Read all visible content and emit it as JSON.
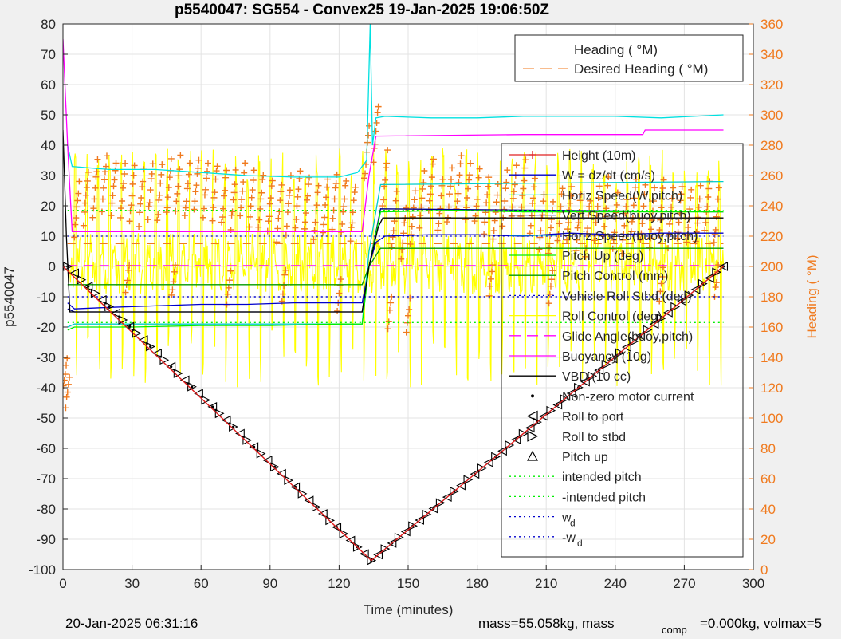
{
  "chart_data": {
    "type": "line",
    "title": "p5540047: SG554 - Convex25 19-Jan-2025 19:06:50Z",
    "xlabel": "Time (minutes)",
    "ylabel": "p5540047",
    "y2label": "Heading (  °M)",
    "xlim": [
      0,
      300
    ],
    "ylim": [
      -100,
      80
    ],
    "y2lim": [
      0,
      360
    ],
    "x_ticks": [
      "0",
      "30",
      "60",
      "90",
      "120",
      "150",
      "180",
      "210",
      "240",
      "270",
      "300"
    ],
    "y_ticks": [
      "80",
      "70",
      "60",
      "50",
      "40",
      "30",
      "20",
      "10",
      "0",
      "-10",
      "-20",
      "-30",
      "-40",
      "-50",
      "-60",
      "-70",
      "-80",
      "-90",
      "-100"
    ],
    "y2_ticks": [
      "360",
      "340",
      "320",
      "300",
      "280",
      "260",
      "240",
      "220",
      "200",
      "180",
      "160",
      "140",
      "120",
      "100",
      "80",
      "60",
      "40",
      "20",
      "0"
    ],
    "grid": true,
    "legend_heading": {
      "placement": "top-right",
      "entries": [
        "Heading (  °M)",
        "Desired Heading (  °M)"
      ]
    },
    "legend_main": {
      "placement": "right",
      "entries": [
        {
          "label": "Height (10m)",
          "color": "#e02020",
          "style": "line-plus"
        },
        {
          "label": "W = dz/dt (cm/s)",
          "color": "#0000cc",
          "style": "line"
        },
        {
          "label": "Horiz Speed(W,pitch)",
          "color": "#00e0e0",
          "style": "line"
        },
        {
          "label": "Vert Speed(buoy,pitch)",
          "color": "#00008b",
          "style": "line"
        },
        {
          "label": "Horiz Speed(buoy,pitch)",
          "color": "#00cccc",
          "style": "line"
        },
        {
          "label": "Pitch Up (deg)",
          "color": "#00ee00",
          "style": "line"
        },
        {
          "label": "Pitch Control (mm)",
          "color": "#009900",
          "style": "line"
        },
        {
          "label": "Vehicle Roll Stbd (deg)",
          "color": "#0000cc",
          "style": "dotted"
        },
        {
          "label": "Roll Control (deg)",
          "color": "#ffff00",
          "style": "line"
        },
        {
          "label": "Glide Angle(buoy,pitch)",
          "color": "#ff00ff",
          "style": "dashed"
        },
        {
          "label": "Buoyancy (10g)",
          "color": "#ff00ff",
          "style": "line"
        },
        {
          "label": "VBD (10 cc)",
          "color": "#000000",
          "style": "line"
        },
        {
          "label": "Non-zero motor current",
          "color": "#000000",
          "style": "dot"
        },
        {
          "label": "Roll to port",
          "color": "#000000",
          "style": "tri-left"
        },
        {
          "label": "Roll to stbd",
          "color": "#000000",
          "style": "tri-right"
        },
        {
          "label": "Pitch up",
          "color": "#000000",
          "style": "tri-up"
        },
        {
          "label": "intended pitch",
          "color": "#00ee00",
          "style": "dotted"
        },
        {
          "label": "-intended pitch",
          "color": "#00ee00",
          "style": "dotted"
        },
        {
          "label": "w",
          "sub": "d",
          "color": "#0000cc",
          "style": "dotted"
        },
        {
          "label": "-w",
          "sub": "d",
          "color": "#0000cc",
          "style": "dotted"
        }
      ]
    },
    "series": [
      {
        "name": "Height (10m)",
        "color": "#e02020",
        "x": [
          0,
          134,
          287
        ],
        "y": [
          0,
          -97,
          0
        ]
      },
      {
        "name": "W = dz/dt (cm/s)",
        "color": "#0000cc",
        "x": [
          2,
          5,
          20,
          40,
          60,
          80,
          100,
          120,
          130,
          133,
          136,
          140,
          160,
          180,
          200,
          220,
          240,
          260,
          287
        ],
        "y": [
          -12,
          -14,
          -13.5,
          -13,
          -12.5,
          -12.5,
          -12,
          -12,
          -12,
          0,
          8,
          10,
          10.5,
          10.5,
          10,
          11,
          10.5,
          11,
          11
        ]
      },
      {
        "name": "Horiz Speed(W,pitch)",
        "color": "#00e0e0",
        "x": [
          2,
          4,
          20,
          40,
          60,
          80,
          100,
          120,
          128,
          132,
          133.5,
          134.5,
          136,
          140,
          160,
          180,
          200,
          220,
          240,
          260,
          287
        ],
        "y": [
          40,
          33,
          32,
          32,
          31,
          30,
          29.5,
          29.5,
          31,
          35,
          80,
          40,
          49,
          49.5,
          49,
          49,
          49.5,
          49.5,
          49.5,
          49,
          50
        ]
      },
      {
        "name": "Vert Speed(buoy,pitch)",
        "color": "#00008b",
        "x": [
          2,
          5,
          130,
          133,
          138,
          287
        ],
        "y": [
          -14,
          -15,
          -15,
          0,
          19,
          18
        ]
      },
      {
        "name": "Horiz Speed(buoy,pitch)",
        "color": "#00cccc",
        "x": [
          2,
          5,
          130,
          133,
          138,
          287
        ],
        "y": [
          -20,
          -19,
          -19,
          5,
          27,
          28
        ]
      },
      {
        "name": "Pitch Up (deg)",
        "color": "#00ee00",
        "x": [
          2,
          5,
          30,
          60,
          90,
          120,
          130,
          133,
          138,
          170,
          200,
          240,
          287
        ],
        "y": [
          -21,
          -20,
          -20,
          -19.5,
          -19.5,
          -19,
          -19,
          0,
          18,
          18.5,
          18,
          18,
          18
        ]
      },
      {
        "name": "Pitch Control (mm)",
        "color": "#009900",
        "x": [
          2,
          5,
          130,
          133,
          138,
          287
        ],
        "y": [
          -6,
          -6,
          -6,
          0,
          6,
          6
        ]
      },
      {
        "name": "Vehicle Roll Stbd (deg)",
        "color": "#0000cc",
        "x": [
          2,
          287
        ],
        "y": [
          -10,
          -10
        ]
      },
      {
        "name": "w_d",
        "color": "#0000cc",
        "x": [
          2,
          287
        ],
        "y": [
          10,
          10
        ]
      },
      {
        "name": "intended pitch",
        "color": "#00ee00",
        "x": [
          2,
          287
        ],
        "y": [
          18.5,
          18.5
        ]
      },
      {
        "name": "-intended pitch",
        "color": "#00ee00",
        "x": [
          2,
          287
        ],
        "y": [
          -18.5,
          -18.5
        ]
      },
      {
        "name": "Glide Angle(buoy,pitch)",
        "color": "#ff00ff",
        "x": [
          2,
          287
        ],
        "y": [
          0.3,
          0.3
        ]
      },
      {
        "name": "Buoyancy (10g)",
        "color": "#ff00ff",
        "x": [
          0,
          2,
          4,
          130,
          133,
          136,
          200,
          252,
          253,
          287
        ],
        "y": [
          75,
          40,
          11.5,
          11.5,
          30,
          43,
          43.5,
          43.5,
          45,
          45
        ]
      },
      {
        "name": "VBD (10 cc)",
        "color": "#000000",
        "x": [
          0,
          1.5,
          3,
          130,
          133,
          137,
          139,
          287
        ],
        "y": [
          45,
          10,
          -15,
          -15,
          0,
          13,
          16,
          16
        ]
      },
      {
        "name": "Roll Control (deg)",
        "color": "#ffff00",
        "x_range": [
          3,
          287
        ],
        "ylim": [
          -40,
          40
        ],
        "oscillation_period": 5
      }
    ],
    "heading_cluster_centers": [
      [
        6,
        238
      ],
      [
        10,
        246
      ],
      [
        14,
        252
      ],
      [
        18,
        256
      ],
      [
        22,
        252
      ],
      [
        26,
        250
      ],
      [
        30,
        248
      ],
      [
        34,
        246
      ],
      [
        38,
        250
      ],
      [
        42,
        248
      ],
      [
        46,
        252
      ],
      [
        50,
        254
      ],
      [
        54,
        250
      ],
      [
        58,
        254
      ],
      [
        62,
        252
      ],
      [
        66,
        250
      ],
      [
        70,
        246
      ],
      [
        74,
        244
      ],
      [
        78,
        250
      ],
      [
        82,
        246
      ],
      [
        86,
        244
      ],
      [
        90,
        240
      ],
      [
        94,
        236
      ],
      [
        98,
        240
      ],
      [
        102,
        244
      ],
      [
        106,
        242
      ],
      [
        110,
        236
      ],
      [
        114,
        240
      ],
      [
        118,
        244
      ],
      [
        122,
        240
      ],
      [
        126,
        236
      ],
      [
        132,
        275
      ],
      [
        136,
        288
      ],
      [
        140,
        258
      ],
      [
        144,
        230
      ],
      [
        148,
        222
      ],
      [
        152,
        232
      ],
      [
        156,
        244
      ],
      [
        160,
        254
      ],
      [
        164,
        240
      ],
      [
        168,
        246
      ],
      [
        172,
        256
      ],
      [
        176,
        250
      ],
      [
        180,
        246
      ],
      [
        184,
        240
      ],
      [
        188,
        236
      ],
      [
        192,
        244
      ],
      [
        196,
        250
      ],
      [
        200,
        252
      ],
      [
        204,
        240
      ],
      [
        208,
        230
      ],
      [
        212,
        226
      ],
      [
        216,
        234
      ],
      [
        220,
        236
      ],
      [
        224,
        230
      ],
      [
        228,
        226
      ],
      [
        232,
        234
      ],
      [
        236,
        240
      ],
      [
        240,
        230
      ],
      [
        244,
        228
      ],
      [
        248,
        240
      ],
      [
        252,
        234
      ],
      [
        256,
        232
      ],
      [
        260,
        238
      ],
      [
        264,
        232
      ],
      [
        268,
        236
      ],
      [
        272,
        232
      ],
      [
        276,
        234
      ],
      [
        280,
        240
      ],
      [
        284,
        232
      ]
    ],
    "heading_low_clusters": [
      [
        1,
        130
      ],
      [
        2,
        118
      ],
      [
        28,
        192
      ],
      [
        48,
        190
      ],
      [
        72,
        186
      ],
      [
        96,
        188
      ],
      [
        120,
        182
      ],
      [
        142,
        170
      ],
      [
        150,
        168
      ],
      [
        186,
        192
      ],
      [
        212,
        186
      ],
      [
        260,
        188
      ],
      [
        284,
        190
      ]
    ],
    "desired_heading": 215,
    "height_markers": {
      "start": [
        2,
        0
      ],
      "bottom": [
        134,
        -97
      ],
      "end": [
        287,
        0
      ],
      "spacing_min": 3
    }
  },
  "footer": {
    "timestamp": "20-Jan-2025 06:31:16",
    "mass_text": "mass=55.058kg, mass",
    "comp_sub": "comp",
    "comp_text": "=0.000kg, volmax=5"
  }
}
